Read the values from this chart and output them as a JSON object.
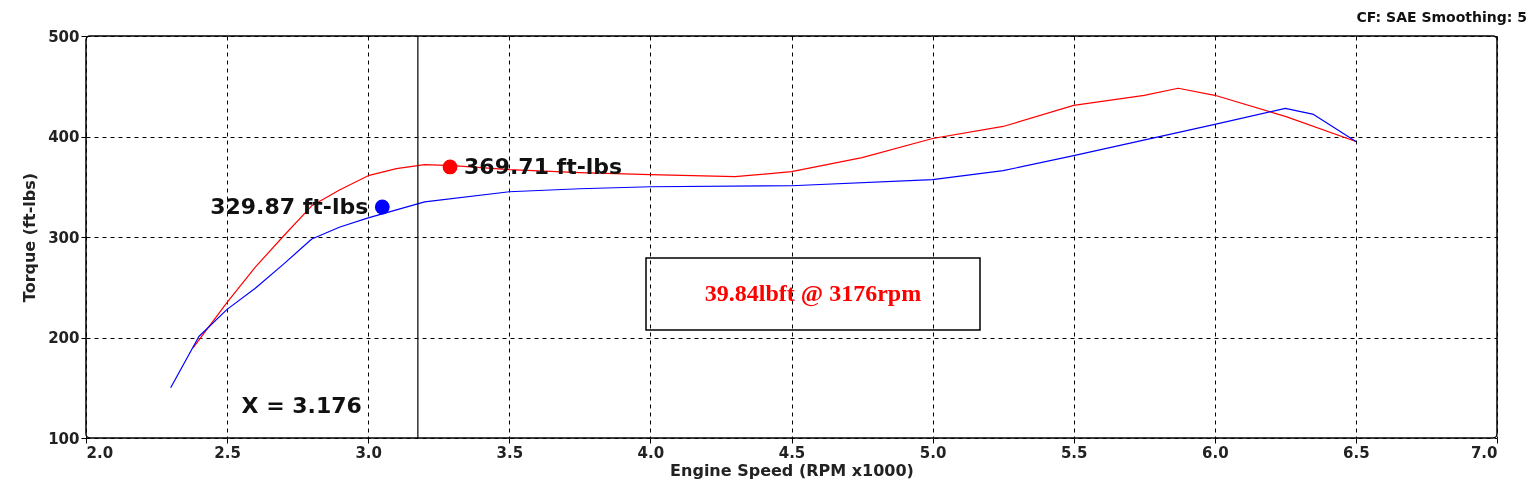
{
  "chart_data": {
    "type": "line",
    "xlabel": "Engine Speed (RPM x1000)",
    "ylabel": "Torque (ft-lbs)",
    "xlim": [
      2,
      7
    ],
    "ylim": [
      100,
      500
    ],
    "xticks": [
      {
        "value": 2,
        "label": "2.0"
      },
      2.5,
      {
        "value": 3,
        "label": "3.0"
      },
      3.5,
      {
        "value": 4,
        "label": "4.0"
      },
      4.5,
      {
        "value": 5,
        "label": "5.0"
      },
      5.5,
      {
        "value": 6,
        "label": "6.0"
      },
      6.5,
      {
        "value": 7,
        "label": "7.0"
      }
    ],
    "yticks": [
      100,
      200,
      300,
      400,
      500
    ],
    "grid": true,
    "line_style": "solid",
    "series": [
      {
        "color": "#ff0000",
        "x": [
          2.38,
          2.5,
          2.6,
          2.7,
          2.8,
          2.9,
          3.0,
          3.1,
          3.2,
          3.3,
          3.5,
          3.75,
          4.0,
          4.3,
          4.5,
          4.75,
          5.0,
          5.25,
          5.5,
          5.75,
          5.87,
          6.0,
          6.25,
          6.5
        ],
        "values": [
          190,
          235,
          270,
          301,
          331,
          347,
          361,
          368,
          372,
          371,
          367,
          364,
          362,
          360,
          365,
          379,
          398,
          410,
          431,
          441,
          448,
          441,
          420,
          395
        ]
      },
      {
        "color": "#0000ff",
        "x": [
          2.3,
          2.4,
          2.5,
          2.6,
          2.7,
          2.8,
          2.9,
          3.0,
          3.1,
          3.2,
          3.5,
          3.75,
          4.0,
          4.5,
          5.0,
          5.25,
          5.5,
          6.0,
          6.25,
          6.35,
          6.5
        ],
        "values": [
          150,
          201,
          228,
          249,
          273,
          298,
          310,
          319,
          327,
          335,
          345,
          348,
          350,
          351,
          357,
          366,
          381,
          412,
          428,
          422,
          395
        ]
      },
      {
        "type": "scatter",
        "color": "#ff0000",
        "marker": "circle",
        "x": [
          3.29
        ],
        "values": [
          369.71
        ],
        "value_labels": [
          "369.71 ft-lbs"
        ]
      },
      {
        "type": "scatter",
        "color": "#0000ff",
        "marker": "circle",
        "x": [
          3.05
        ],
        "values": [
          329.87
        ],
        "value_labels": [
          "329.87 ft-lbs"
        ]
      }
    ],
    "ref_lines": [
      {
        "axis": "x",
        "value": 3.176,
        "label": "X = 3.176",
        "color": "#000000"
      }
    ],
    "annotations": [
      "CF: SAE  Smoothing: 5",
      "39.84lbft @ 3176rpm"
    ]
  }
}
